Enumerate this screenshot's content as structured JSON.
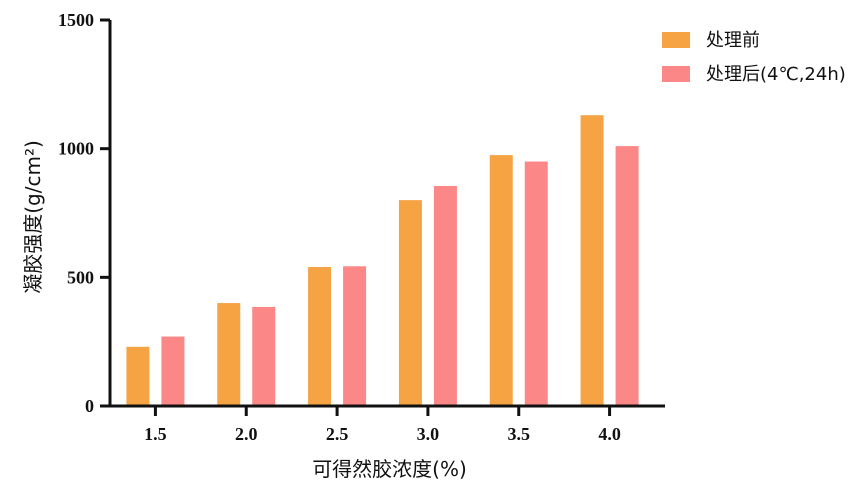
{
  "chart_data": {
    "type": "bar",
    "title": "",
    "xlabel": "可得然胶浓度(%)",
    "ylabel": "凝胶强度(g/cm²)",
    "ylim": [
      0,
      1500
    ],
    "yticks": [
      0,
      500,
      1000,
      1500
    ],
    "categories": [
      "1.5",
      "2.0",
      "2.5",
      "3.0",
      "3.5",
      "4.0"
    ],
    "series": [
      {
        "name": "处理前",
        "color": "#f5a343",
        "values": [
          230,
          400,
          540,
          800,
          975,
          1130
        ]
      },
      {
        "name": "处理后(4℃,24h)",
        "color": "#fc8787",
        "values": [
          270,
          385,
          543,
          855,
          950,
          1010
        ]
      }
    ],
    "legend_position": "top-right",
    "grid": false
  }
}
